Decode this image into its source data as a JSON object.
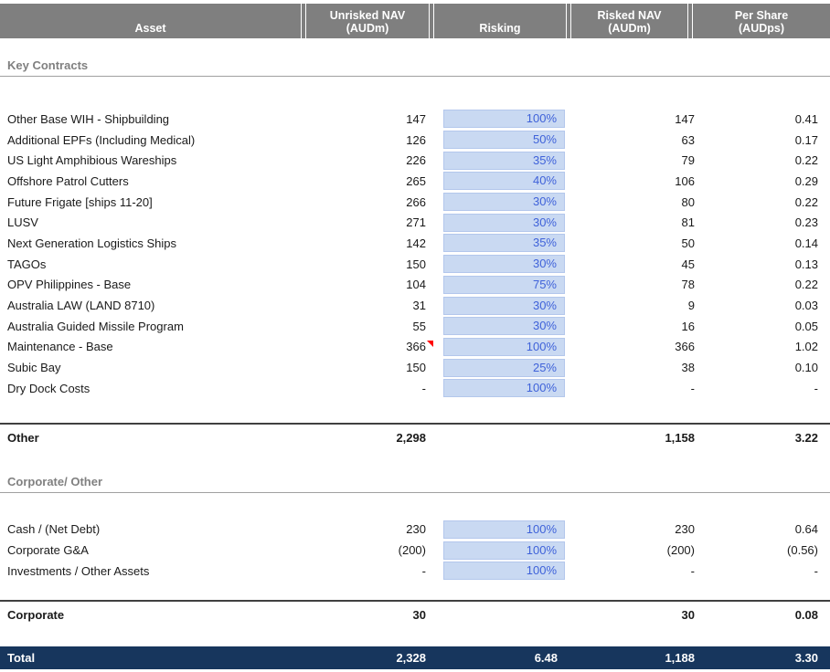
{
  "colors": {
    "header_bg": "#7f7f7f",
    "input_cell_fill": "#c9d9f2",
    "input_cell_text": "#3f62d9",
    "total_bg": "#17365d",
    "section_text": "#808080",
    "comment_marker_red": "#ff0000"
  },
  "header": {
    "columns": [
      {
        "label": "Asset"
      },
      {
        "label": "Unrisked NAV\n(AUDm)"
      },
      {
        "label": "Risking"
      },
      {
        "label": "Risked NAV\n(AUDm)"
      },
      {
        "label": "Per Share\n(AUDps)"
      }
    ]
  },
  "sections": [
    {
      "title": "Key Contracts",
      "rows": [
        {
          "asset": "Other Base WIH - Shipbuilding",
          "unrisked": "147",
          "risking": "100%",
          "risked": "147",
          "per_share": "0.41"
        },
        {
          "asset": "Additional EPFs (Including Medical)",
          "unrisked": "126",
          "risking": "50%",
          "risked": "63",
          "per_share": "0.17"
        },
        {
          "asset": "US Light Amphibious Wareships",
          "unrisked": "226",
          "risking": "35%",
          "risked": "79",
          "per_share": "0.22"
        },
        {
          "asset": "Offshore Patrol Cutters",
          "unrisked": "265",
          "risking": "40%",
          "risked": "106",
          "per_share": "0.29"
        },
        {
          "asset": "Future Frigate [ships 11-20]",
          "unrisked": "266",
          "risking": "30%",
          "risked": "80",
          "per_share": "0.22"
        },
        {
          "asset": "LUSV",
          "unrisked": "271",
          "risking": "30%",
          "risked": "81",
          "per_share": "0.23"
        },
        {
          "asset": "Next Generation Logistics Ships",
          "unrisked": "142",
          "risking": "35%",
          "risked": "50",
          "per_share": "0.14"
        },
        {
          "asset": "TAGOs",
          "unrisked": "150",
          "risking": "30%",
          "risked": "45",
          "per_share": "0.13"
        },
        {
          "asset": "OPV Philippines - Base",
          "unrisked": "104",
          "risking": "75%",
          "risked": "78",
          "per_share": "0.22"
        },
        {
          "asset": "Australia LAW (LAND 8710)",
          "unrisked": "31",
          "risking": "30%",
          "risked": "9",
          "per_share": "0.03"
        },
        {
          "asset": "Australia Guided Missile Program",
          "unrisked": "55",
          "risking": "30%",
          "risked": "16",
          "per_share": "0.05"
        },
        {
          "asset": "Maintenance - Base",
          "unrisked": "366",
          "risking": "100%",
          "risked": "366",
          "per_share": "1.02",
          "comment": true
        },
        {
          "asset": "Subic Bay",
          "unrisked": "150",
          "risking": "25%",
          "risked": "38",
          "per_share": "0.10"
        },
        {
          "asset": "Dry Dock Costs",
          "unrisked": "-",
          "risking": "100%",
          "risked": "-",
          "per_share": "-"
        }
      ],
      "summary": {
        "label": "Other",
        "unrisked": "2,298",
        "risking": "",
        "risked": "1,158",
        "per_share": "3.22"
      }
    },
    {
      "title": "Corporate/ Other",
      "rows": [
        {
          "asset": "Cash / (Net Debt)",
          "unrisked": "230",
          "risking": "100%",
          "risked": "230",
          "per_share": "0.64"
        },
        {
          "asset": "Corporate G&A",
          "unrisked": "(200)",
          "risking": "100%",
          "risked": "(200)",
          "per_share": "(0.56)"
        },
        {
          "asset": "Investments / Other Assets",
          "unrisked": "-",
          "risking": "100%",
          "risked": "-",
          "per_share": "-"
        }
      ],
      "summary": {
        "label": "Corporate",
        "unrisked": "30",
        "risking": "",
        "risked": "30",
        "per_share": "0.08"
      }
    }
  ],
  "total": {
    "label": "Total",
    "unrisked": "2,328",
    "risking": "6.48",
    "risked": "1,188",
    "per_share": "3.30"
  }
}
